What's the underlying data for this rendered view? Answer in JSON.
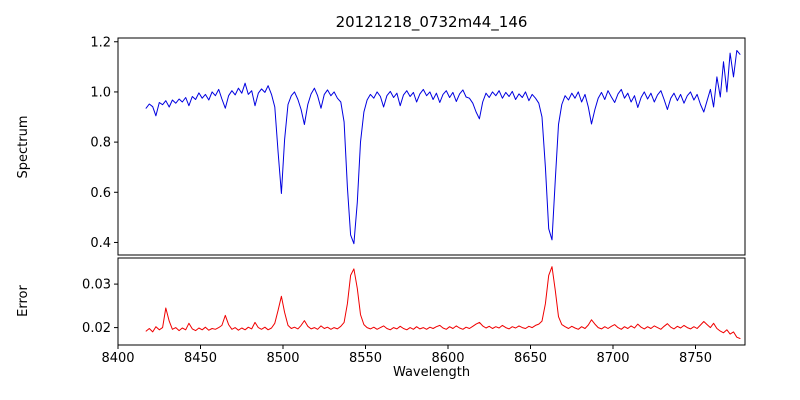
{
  "chart_data": {
    "type": "line",
    "title": "20121218_0732m44_146",
    "xlabel": "Wavelength",
    "xlim": [
      8400,
      8780
    ],
    "xticks": [
      8400,
      8450,
      8500,
      8550,
      8600,
      8650,
      8700,
      8750
    ],
    "xtick_labels": [
      "8400",
      "8450",
      "8500",
      "8550",
      "8600",
      "8650",
      "8700",
      "8750"
    ],
    "grid": false,
    "legend": "none",
    "panels": [
      {
        "name": "spectrum",
        "ylabel": "Spectrum",
        "ylim": [
          0.35,
          1.215
        ],
        "yticks": [
          0.4,
          0.6,
          0.8,
          1.0,
          1.2
        ],
        "ytick_labels": [
          "0.4",
          "0.6",
          "0.8",
          "1.0",
          "1.2"
        ],
        "line_color": "#0000e0",
        "series": {
          "name": "spectrum-flux",
          "x_start": 8417,
          "x_step": 2,
          "values": [
            0.935,
            0.952,
            0.941,
            0.905,
            0.958,
            0.949,
            0.965,
            0.94,
            0.968,
            0.955,
            0.972,
            0.96,
            0.978,
            0.945,
            0.982,
            0.97,
            0.996,
            0.975,
            0.99,
            0.968,
            1.0,
            0.985,
            1.01,
            0.972,
            0.935,
            0.985,
            1.005,
            0.988,
            1.015,
            0.995,
            1.035,
            0.99,
            1.005,
            0.945,
            0.995,
            1.012,
            0.998,
            1.025,
            0.99,
            0.94,
            0.76,
            0.595,
            0.81,
            0.95,
            0.985,
            1.0,
            0.97,
            0.93,
            0.87,
            0.95,
            0.992,
            1.015,
            0.985,
            0.935,
            0.99,
            1.008,
            0.985,
            1.0,
            0.975,
            0.96,
            0.88,
            0.62,
            0.43,
            0.395,
            0.56,
            0.8,
            0.92,
            0.968,
            0.99,
            0.975,
            1.0,
            0.982,
            0.94,
            0.985,
            1.002,
            0.978,
            0.995,
            0.945,
            0.988,
            1.005,
            0.982,
            0.998,
            0.96,
            0.992,
            1.01,
            0.985,
            1.0,
            0.97,
            0.995,
            0.958,
            0.99,
            1.005,
            0.978,
            0.998,
            0.962,
            0.992,
            1.008,
            0.98,
            0.975,
            0.955,
            0.92,
            0.893,
            0.96,
            0.995,
            0.978,
            1.0,
            0.985,
            1.005,
            0.975,
            0.998,
            0.982,
            1.002,
            0.97,
            0.992,
            0.978,
            1.0,
            0.965,
            0.99,
            0.975,
            0.955,
            0.9,
            0.7,
            0.455,
            0.41,
            0.65,
            0.87,
            0.95,
            0.985,
            0.968,
            0.995,
            0.975,
            1.0,
            0.96,
            0.99,
            0.94,
            0.872,
            0.93,
            0.975,
            0.998,
            0.97,
            1.005,
            0.98,
            0.958,
            0.992,
            1.01,
            0.975,
            0.995,
            0.96,
            0.985,
            0.938,
            0.978,
            1.0,
            0.972,
            0.995,
            0.96,
            0.988,
            1.005,
            0.97,
            0.93,
            0.975,
            0.995,
            0.965,
            0.99,
            0.955,
            0.985,
            1.0,
            0.968,
            0.99,
            0.95,
            0.92,
            0.965,
            1.01,
            0.94,
            1.06,
            0.98,
            1.12,
            1.0,
            1.155,
            1.06,
            1.165,
            1.15
          ]
        },
        "features": {
          "absorption_line_centers": [
            8498,
            8542,
            8662
          ],
          "absorption_line_depths": [
            0.595,
            0.395,
            0.41
          ]
        }
      },
      {
        "name": "error",
        "ylabel": "Error",
        "ylim": [
          0.016,
          0.036
        ],
        "yticks": [
          0.02,
          0.03
        ],
        "ytick_labels": [
          "0.02",
          "0.03"
        ],
        "line_color": "#f00000",
        "series": {
          "name": "error-level",
          "x_start": 8417,
          "x_step": 2,
          "values": [
            0.0192,
            0.0198,
            0.019,
            0.0202,
            0.0195,
            0.02,
            0.0245,
            0.0215,
            0.0196,
            0.02,
            0.0193,
            0.0199,
            0.0195,
            0.021,
            0.0197,
            0.0193,
            0.0199,
            0.0195,
            0.0201,
            0.0194,
            0.0198,
            0.0196,
            0.02,
            0.0205,
            0.0228,
            0.0207,
            0.0196,
            0.02,
            0.0194,
            0.0199,
            0.0195,
            0.0201,
            0.0197,
            0.0212,
            0.02,
            0.0196,
            0.0201,
            0.0195,
            0.0199,
            0.021,
            0.024,
            0.0272,
            0.0235,
            0.0205,
            0.0198,
            0.0201,
            0.0197,
            0.0205,
            0.0216,
            0.0203,
            0.0197,
            0.02,
            0.0196,
            0.0204,
            0.0198,
            0.0201,
            0.0196,
            0.02,
            0.0197,
            0.0203,
            0.0212,
            0.0255,
            0.032,
            0.0335,
            0.029,
            0.023,
            0.0207,
            0.02,
            0.0197,
            0.0201,
            0.0196,
            0.02,
            0.0204,
            0.0198,
            0.0195,
            0.02,
            0.0197,
            0.0203,
            0.0198,
            0.0195,
            0.02,
            0.0196,
            0.0202,
            0.0197,
            0.02,
            0.0196,
            0.0201,
            0.0198,
            0.0202,
            0.0205,
            0.0199,
            0.0196,
            0.0202,
            0.0198,
            0.0204,
            0.0199,
            0.0196,
            0.0201,
            0.0198,
            0.0203,
            0.0208,
            0.0212,
            0.0204,
            0.0199,
            0.0203,
            0.0198,
            0.0202,
            0.0199,
            0.0205,
            0.02,
            0.0197,
            0.0202,
            0.0199,
            0.0204,
            0.02,
            0.0198,
            0.0203,
            0.02,
            0.0205,
            0.0208,
            0.0215,
            0.0255,
            0.032,
            0.034,
            0.0285,
            0.0225,
            0.0207,
            0.0202,
            0.0198,
            0.0203,
            0.0199,
            0.0196,
            0.0202,
            0.0198,
            0.0206,
            0.0218,
            0.0208,
            0.02,
            0.0197,
            0.0202,
            0.0198,
            0.0203,
            0.0207,
            0.02,
            0.0196,
            0.0202,
            0.0198,
            0.0204,
            0.0199,
            0.0208,
            0.0201,
            0.0197,
            0.0202,
            0.0198,
            0.0204,
            0.02,
            0.0196,
            0.0203,
            0.0209,
            0.0201,
            0.0197,
            0.0203,
            0.0199,
            0.0205,
            0.02,
            0.0197,
            0.0202,
            0.0198,
            0.0206,
            0.0214,
            0.0207,
            0.02,
            0.021,
            0.0198,
            0.0192,
            0.0188,
            0.0195,
            0.0185,
            0.019,
            0.0178,
            0.0175
          ]
        },
        "features": {
          "error_peak_centers": [
            8429,
            8465,
            8498,
            8542,
            8662
          ],
          "error_peak_values": [
            0.0245,
            0.0228,
            0.0272,
            0.0335,
            0.034
          ]
        }
      }
    ]
  }
}
